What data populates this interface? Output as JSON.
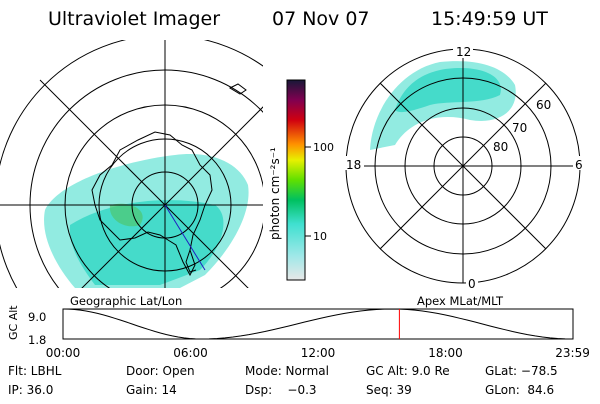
{
  "header": {
    "instrument": "Ultraviolet Imager",
    "date": "07 Nov 07",
    "time": "15:49:59 UT"
  },
  "left_panel": {
    "label": "Geographic Lat/Lon"
  },
  "right_panel": {
    "label": "Apex MLat/MLT",
    "mlt_labels": {
      "top": "12",
      "left": "18",
      "right": "6",
      "bottom": "0"
    },
    "mlat_rings": [
      "60",
      "70",
      "80"
    ]
  },
  "colorbar": {
    "label": "photon cm⁻²s⁻¹",
    "ticks": [
      "100",
      "10"
    ],
    "colors": [
      "#e0e0e0",
      "#40e0d0",
      "#00c000",
      "#a0f000",
      "#f0f000",
      "#ff8000",
      "#d00000",
      "#800040",
      "#202040"
    ]
  },
  "timeline": {
    "ylabel": "GC Alt",
    "y_ticks": [
      "9.0",
      "1.8"
    ],
    "x_ticks": [
      "00:00",
      "06:00",
      "12:00",
      "18:00",
      "23:59"
    ],
    "marker_color": "#ff0000"
  },
  "chart_data": {
    "type": "line",
    "title": "",
    "xlabel": "",
    "ylabel": "GC Alt",
    "xlim": [
      0,
      24
    ],
    "ylim": [
      1.8,
      9.0
    ],
    "x": [
      0,
      6.5,
      15.5,
      23.98
    ],
    "series": [
      {
        "values": [
          9.0,
          1.8,
          9.0,
          1.8
        ]
      }
    ],
    "marker_x": 15.83
  },
  "footer": {
    "rows": [
      [
        "Flt: LBHL",
        "Door: Open",
        "Mode: Normal",
        "GC Alt: 9.0 Re",
        "GLat: −78.5"
      ],
      [
        "IP: 36.0",
        "Gain: 14",
        "Dsp:    −0.3",
        "Seq: 39",
        "GLon:  84.6"
      ]
    ]
  }
}
